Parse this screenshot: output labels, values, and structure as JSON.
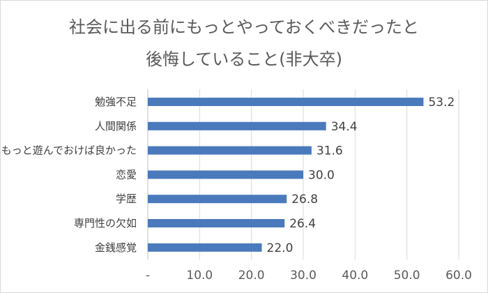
{
  "chart_data": {
    "type": "bar",
    "orientation": "horizontal",
    "title": [
      "社会に出る前にもっとやっておくべきだったと",
      "後悔していること(非大卒)"
    ],
    "categories": [
      "勉強不足",
      "人間関係",
      "もっと遊んでおけば良かった",
      "恋愛",
      "学歴",
      "専門性の欠如",
      "金銭感覚"
    ],
    "values": [
      53.2,
      34.4,
      31.6,
      30.0,
      26.8,
      26.4,
      22.0
    ],
    "value_labels": [
      "53.2",
      "34.4",
      "31.6",
      "30.0",
      "26.8",
      "26.4",
      "22.0"
    ],
    "xlim": [
      0,
      60
    ],
    "xticks": [
      0,
      10,
      20,
      30,
      40,
      50,
      60
    ],
    "xtick_labels": [
      "-",
      "10.0",
      "20.0",
      "30.0",
      "40.0",
      "50.0",
      "60.0"
    ],
    "bar_color": "#4a7abc",
    "grid": "vertical",
    "legend": "none"
  }
}
